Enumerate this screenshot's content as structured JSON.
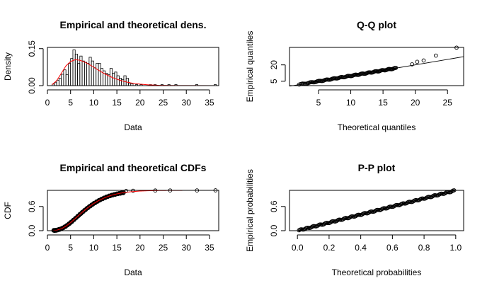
{
  "chart_data": [
    {
      "type": "histogram",
      "title": "Empirical and theoretical dens.",
      "xlabel": "Data",
      "ylabel": "Density",
      "xlim": [
        0,
        37
      ],
      "ylim": [
        0,
        0.155
      ],
      "xticks": [
        "0",
        "5",
        "10",
        "15",
        "20",
        "25",
        "30",
        "35"
      ],
      "yticks": [
        "0.00",
        "0.15"
      ],
      "bin_width": 0.5,
      "bins": [
        [
          1.0,
          0.006
        ],
        [
          1.5,
          0.012
        ],
        [
          2.0,
          0.022
        ],
        [
          2.5,
          0.03
        ],
        [
          3.0,
          0.046
        ],
        [
          3.5,
          0.064
        ],
        [
          4.0,
          0.045
        ],
        [
          4.5,
          0.09
        ],
        [
          5.0,
          0.11
        ],
        [
          5.5,
          0.145
        ],
        [
          6.0,
          0.128
        ],
        [
          6.5,
          0.09
        ],
        [
          7.0,
          0.12
        ],
        [
          7.5,
          0.1
        ],
        [
          8.0,
          0.095
        ],
        [
          8.5,
          0.09
        ],
        [
          9.0,
          0.115
        ],
        [
          9.5,
          0.1
        ],
        [
          10.0,
          0.072
        ],
        [
          10.5,
          0.09
        ],
        [
          11.0,
          0.09
        ],
        [
          11.5,
          0.07
        ],
        [
          12.0,
          0.06
        ],
        [
          12.5,
          0.05
        ],
        [
          13.0,
          0.044
        ],
        [
          13.5,
          0.07
        ],
        [
          14.0,
          0.05
        ],
        [
          14.5,
          0.055
        ],
        [
          15.0,
          0.04
        ],
        [
          15.5,
          0.03
        ],
        [
          16.0,
          0.025
        ],
        [
          16.5,
          0.04
        ],
        [
          17.0,
          0.03
        ],
        [
          17.5,
          0.01
        ],
        [
          18.0,
          0.008
        ],
        [
          19.0,
          0.004
        ],
        [
          20.0,
          0.004
        ],
        [
          22.0,
          0.004
        ],
        [
          23.0,
          0.004
        ],
        [
          24.5,
          0.004
        ],
        [
          26.0,
          0.004
        ],
        [
          27.5,
          0.004
        ],
        [
          32.0,
          0.004
        ],
        [
          36.0,
          0.004
        ]
      ],
      "density_curve": [
        [
          1,
          0.004
        ],
        [
          2,
          0.02
        ],
        [
          3,
          0.05
        ],
        [
          4,
          0.08
        ],
        [
          5,
          0.098
        ],
        [
          6,
          0.105
        ],
        [
          7,
          0.103
        ],
        [
          8,
          0.096
        ],
        [
          9,
          0.086
        ],
        [
          10,
          0.075
        ],
        [
          11,
          0.063
        ],
        [
          12,
          0.052
        ],
        [
          13,
          0.042
        ],
        [
          14,
          0.033
        ],
        [
          15,
          0.026
        ],
        [
          16,
          0.02
        ],
        [
          17,
          0.015
        ],
        [
          18,
          0.011
        ],
        [
          19,
          0.008
        ],
        [
          20,
          0.006
        ],
        [
          22,
          0.003
        ],
        [
          24,
          0.0015
        ],
        [
          26,
          0.0008
        ],
        [
          30,
          0.0002
        ],
        [
          37,
          0.0
        ]
      ],
      "curve_color": "#FF0000"
    },
    {
      "type": "scatter",
      "title": "Q-Q plot",
      "xlabel": "Theoretical quantiles",
      "ylabel": "Empirical quantiles",
      "xlim": [
        0.5,
        27.5
      ],
      "ylim": [
        1,
        36
      ],
      "xticks": [
        "5",
        "10",
        "15",
        "20",
        "25"
      ],
      "yticks": [
        "5",
        "20"
      ],
      "points_range": [
        2,
        17
      ],
      "outliers": [
        [
          19.5,
          20.5
        ],
        [
          20.3,
          22.8
        ],
        [
          21.3,
          24.0
        ],
        [
          23.2,
          28.5
        ],
        [
          26.4,
          35.8
        ]
      ],
      "reference_line": [
        [
          0.5,
          0.5
        ],
        [
          27.5,
          27.5
        ]
      ]
    },
    {
      "type": "ecdf",
      "title": "Empirical and theoretical CDFs",
      "xlabel": "Data",
      "ylabel": "CDF",
      "xlim": [
        0,
        37
      ],
      "ylim": [
        0,
        1.0
      ],
      "xticks": [
        "0",
        "5",
        "10",
        "15",
        "20",
        "25",
        "30",
        "35"
      ],
      "yticks": [
        "0.0",
        "0.6"
      ],
      "tail_points": [
        [
          17,
          0.985
        ],
        [
          18.5,
          0.99
        ],
        [
          23.3,
          0.995
        ],
        [
          26.5,
          0.997
        ],
        [
          32.3,
          0.998
        ],
        [
          36.3,
          1.0
        ]
      ],
      "curve_color": "#FF0000"
    },
    {
      "type": "scatter",
      "title": "P-P plot",
      "xlabel": "Theoretical probabilities",
      "ylabel": "Empirical probabilities",
      "xlim": [
        -0.05,
        1.05
      ],
      "ylim": [
        0,
        1.0
      ],
      "xticks": [
        "0.0",
        "0.2",
        "0.4",
        "0.6",
        "0.8",
        "1.0"
      ],
      "yticks": [
        "0.0",
        "0.6"
      ],
      "reference_line": [
        [
          0,
          0
        ],
        [
          1,
          1
        ]
      ]
    }
  ]
}
